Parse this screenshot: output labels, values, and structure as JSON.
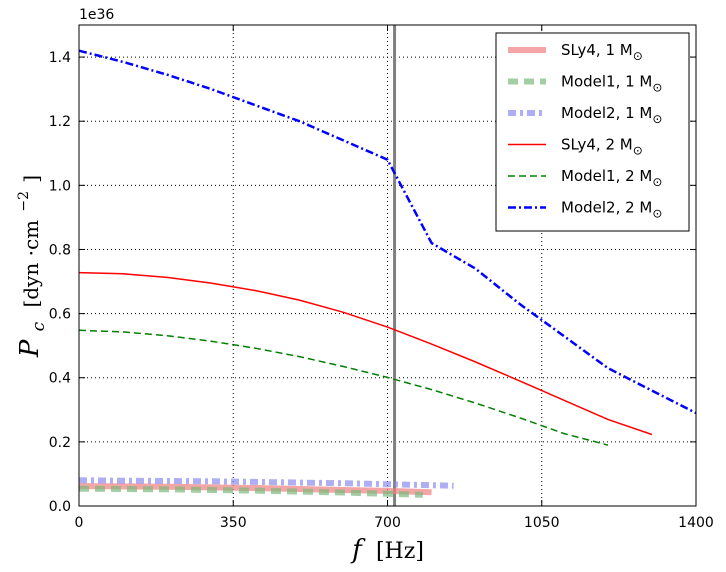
{
  "chart_data": {
    "type": "line",
    "title": "",
    "xlabel": "f [Hz]",
    "ylabel": "P_c [dyn·cm^-2]",
    "xlabel_parts": {
      "var": "f",
      "unit": "[Hz]"
    },
    "ylabel_parts": {
      "var": "P",
      "sub": "c",
      "unit_open": "[dyn ·cm",
      "unit_exp": "−2",
      "unit_close": "]"
    },
    "y_scale_label": "1e36",
    "xlim": [
      0,
      1400
    ],
    "ylim": [
      0.0,
      1.5
    ],
    "xticks": [
      0,
      350,
      700,
      1050,
      1400
    ],
    "xtick_labels": [
      "0",
      "350",
      "700",
      "1050",
      "1400"
    ],
    "yticks": [
      0.0,
      0.2,
      0.4,
      0.6,
      0.8,
      1.0,
      1.2,
      1.4
    ],
    "ytick_labels": [
      "0.0",
      "0.2",
      "0.4",
      "0.6",
      "0.8",
      "1.0",
      "1.2",
      "1.4"
    ],
    "grid": true,
    "vertical_line": {
      "x": 716,
      "color": "#808080"
    },
    "legend_position": "top-right",
    "series": [
      {
        "name": "SLy4, 1 M",
        "mass_symbol": "⊙",
        "color": "#f08080",
        "style": "thick-solid",
        "x": [
          0,
          100,
          200,
          300,
          400,
          500,
          600,
          700,
          800
        ],
        "y": [
          0.062,
          0.061,
          0.06,
          0.058,
          0.056,
          0.053,
          0.05,
          0.047,
          0.043
        ]
      },
      {
        "name": "Model1, 1 M",
        "mass_symbol": "⊙",
        "color": "#7cb87c",
        "style": "thick-dashed",
        "x": [
          0,
          100,
          200,
          300,
          400,
          500,
          600,
          700,
          780
        ],
        "y": [
          0.054,
          0.053,
          0.052,
          0.05,
          0.048,
          0.045,
          0.042,
          0.038,
          0.035
        ]
      },
      {
        "name": "Model2, 1 M",
        "mass_symbol": "⊙",
        "color": "#8c8cf0",
        "style": "thick-dashdot",
        "x": [
          0,
          100,
          200,
          300,
          400,
          500,
          600,
          700,
          800,
          850
        ],
        "y": [
          0.08,
          0.079,
          0.078,
          0.077,
          0.075,
          0.073,
          0.071,
          0.068,
          0.065,
          0.063
        ]
      },
      {
        "name": "SLy4, 2 M",
        "mass_symbol": "⊙",
        "color": "#ff0000",
        "style": "solid",
        "x": [
          0,
          100,
          200,
          300,
          400,
          500,
          600,
          700,
          800,
          900,
          1000,
          1100,
          1200,
          1300
        ],
        "y": [
          0.728,
          0.724,
          0.713,
          0.695,
          0.672,
          0.642,
          0.604,
          0.558,
          0.505,
          0.449,
          0.39,
          0.33,
          0.27,
          0.223
        ]
      },
      {
        "name": "Model1, 2 M",
        "mass_symbol": "⊙",
        "color": "#008000",
        "style": "dashed",
        "x": [
          0,
          100,
          200,
          300,
          400,
          500,
          600,
          700,
          800,
          900,
          1000,
          1100,
          1200
        ],
        "y": [
          0.548,
          0.543,
          0.531,
          0.514,
          0.492,
          0.466,
          0.435,
          0.401,
          0.363,
          0.321,
          0.275,
          0.226,
          0.19
        ]
      },
      {
        "name": "Model2, 2 M",
        "mass_symbol": "⊙",
        "color": "#0000ff",
        "style": "dashdot",
        "x": [
          0,
          100,
          200,
          300,
          400,
          500,
          600,
          700,
          800,
          900,
          1000,
          1100,
          1200,
          1300,
          1400
        ],
        "y": [
          1.42,
          1.385,
          1.345,
          1.3,
          1.25,
          1.2,
          1.14,
          1.08,
          0.82,
          0.74,
          0.63,
          0.53,
          0.43,
          0.36,
          0.29
        ]
      }
    ]
  }
}
